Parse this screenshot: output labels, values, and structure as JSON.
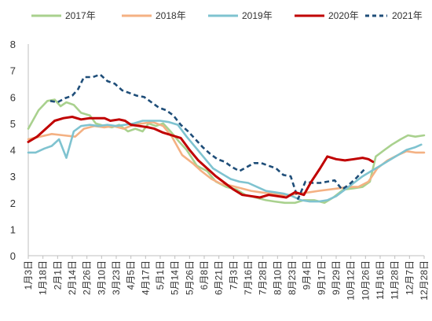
{
  "chart_data": {
    "type": "line",
    "ylim": [
      0,
      8
    ],
    "yticks": [
      "0",
      "1",
      "2",
      "3",
      "4",
      "5",
      "6",
      "7",
      "8"
    ],
    "grid": false,
    "legend_position": "top",
    "xtick_labels": [
      "1月3日",
      "1月18日",
      "2月1日",
      "2月14日",
      "2月26日",
      "3月10日",
      "3月23日",
      "4月5日",
      "4月17日",
      "5月1日",
      "5月14日",
      "5月26日",
      "6月8日",
      "6月21日",
      "7月3日",
      "7月16日",
      "7月28日",
      "8月10日",
      "8月23日",
      "9月4日",
      "9月17日",
      "9月29日",
      "10月12日",
      "10月26日",
      "11月16日",
      "11月28日",
      "12月7日",
      "12月28日"
    ],
    "series": [
      {
        "name": "2017年",
        "color": "#a9d18e",
        "dashed": false,
        "points": [
          [
            0,
            4.8
          ],
          [
            0.7,
            5.5
          ],
          [
            1.3,
            5.85
          ],
          [
            1.8,
            5.9
          ],
          [
            2.2,
            5.65
          ],
          [
            2.6,
            5.8
          ],
          [
            3.1,
            5.7
          ],
          [
            3.6,
            5.4
          ],
          [
            4.2,
            5.3
          ],
          [
            4.6,
            5.0
          ],
          [
            5.2,
            4.9
          ],
          [
            5.7,
            4.85
          ],
          [
            6.2,
            4.95
          ],
          [
            6.8,
            4.7
          ],
          [
            7.3,
            4.8
          ],
          [
            7.8,
            4.7
          ],
          [
            8.2,
            5.0
          ],
          [
            8.7,
            4.9
          ],
          [
            9.2,
            5.0
          ],
          [
            9.7,
            4.7
          ],
          [
            10.3,
            4.3
          ],
          [
            10.8,
            4.0
          ],
          [
            11.5,
            3.4
          ],
          [
            12.2,
            3.2
          ],
          [
            12.8,
            2.8
          ],
          [
            13.5,
            2.6
          ],
          [
            14.2,
            2.5
          ],
          [
            14.8,
            2.3
          ],
          [
            15.5,
            2.2
          ],
          [
            16.2,
            2.1
          ],
          [
            16.8,
            2.05
          ],
          [
            17.5,
            2.0
          ],
          [
            18.2,
            2.0
          ],
          [
            18.8,
            2.1
          ],
          [
            19.5,
            2.1
          ],
          [
            20.2,
            2.0
          ],
          [
            20.8,
            2.2
          ],
          [
            21.5,
            2.5
          ],
          [
            22.2,
            2.55
          ],
          [
            22.8,
            2.6
          ],
          [
            23.3,
            2.8
          ],
          [
            23.7,
            3.75
          ],
          [
            24.3,
            4.0
          ],
          [
            24.8,
            4.2
          ],
          [
            25.4,
            4.4
          ],
          [
            25.9,
            4.55
          ],
          [
            26.4,
            4.5
          ],
          [
            27,
            4.55
          ]
        ]
      },
      {
        "name": "2018年",
        "color": "#f4b183",
        "dashed": false,
        "points": [
          [
            0,
            4.4
          ],
          [
            0.8,
            4.5
          ],
          [
            1.6,
            4.6
          ],
          [
            2.4,
            4.55
          ],
          [
            3.2,
            4.5
          ],
          [
            3.8,
            4.8
          ],
          [
            4.5,
            4.9
          ],
          [
            5.2,
            4.85
          ],
          [
            5.8,
            4.9
          ],
          [
            6.5,
            4.8
          ],
          [
            7.2,
            4.95
          ],
          [
            7.8,
            5.0
          ],
          [
            8.5,
            5.05
          ],
          [
            9.2,
            4.9
          ],
          [
            9.8,
            4.5
          ],
          [
            10.5,
            3.8
          ],
          [
            11.2,
            3.5
          ],
          [
            11.8,
            3.2
          ],
          [
            12.5,
            2.9
          ],
          [
            13.2,
            2.7
          ],
          [
            13.8,
            2.65
          ],
          [
            14.5,
            2.55
          ],
          [
            15.2,
            2.45
          ],
          [
            15.8,
            2.4
          ],
          [
            16.5,
            2.35
          ],
          [
            17.2,
            2.3
          ],
          [
            17.8,
            2.3
          ],
          [
            18.5,
            2.35
          ],
          [
            19.2,
            2.4
          ],
          [
            19.8,
            2.45
          ],
          [
            20.5,
            2.5
          ],
          [
            21.2,
            2.55
          ],
          [
            21.8,
            2.6
          ],
          [
            22.5,
            2.6
          ],
          [
            23.2,
            2.8
          ],
          [
            23.8,
            3.3
          ],
          [
            24.5,
            3.6
          ],
          [
            25.2,
            3.8
          ],
          [
            25.8,
            3.95
          ],
          [
            26.4,
            3.9
          ],
          [
            27,
            3.9
          ]
        ]
      },
      {
        "name": "2019年",
        "color": "#7fc3d0",
        "dashed": false,
        "points": [
          [
            0,
            3.9
          ],
          [
            0.5,
            3.9
          ],
          [
            1.1,
            4.05
          ],
          [
            1.6,
            4.15
          ],
          [
            2.1,
            4.4
          ],
          [
            2.6,
            3.7
          ],
          [
            3.1,
            4.7
          ],
          [
            3.6,
            4.9
          ],
          [
            4.2,
            4.95
          ],
          [
            4.8,
            4.9
          ],
          [
            5.4,
            4.95
          ],
          [
            6.0,
            4.9
          ],
          [
            6.6,
            4.95
          ],
          [
            7.2,
            5.0
          ],
          [
            7.8,
            5.1
          ],
          [
            8.4,
            5.1
          ],
          [
            9.0,
            5.1
          ],
          [
            9.6,
            5.05
          ],
          [
            10.2,
            4.95
          ],
          [
            10.8,
            4.5
          ],
          [
            11.4,
            4.1
          ],
          [
            12.0,
            3.7
          ],
          [
            12.6,
            3.3
          ],
          [
            13.2,
            3.1
          ],
          [
            13.8,
            2.9
          ],
          [
            14.4,
            2.8
          ],
          [
            15.0,
            2.75
          ],
          [
            15.6,
            2.6
          ],
          [
            16.2,
            2.45
          ],
          [
            16.8,
            2.4
          ],
          [
            17.4,
            2.35
          ],
          [
            18.0,
            2.25
          ],
          [
            18.6,
            2.1
          ],
          [
            19.2,
            2.05
          ],
          [
            19.8,
            2.05
          ],
          [
            20.4,
            2.1
          ],
          [
            21.0,
            2.25
          ],
          [
            21.6,
            2.5
          ],
          [
            22.2,
            2.75
          ],
          [
            22.8,
            3.0
          ],
          [
            23.4,
            3.2
          ],
          [
            24.0,
            3.4
          ],
          [
            24.6,
            3.6
          ],
          [
            25.2,
            3.8
          ],
          [
            25.8,
            4.0
          ],
          [
            26.4,
            4.1
          ],
          [
            26.8,
            4.2
          ]
        ]
      },
      {
        "name": "2020年",
        "color": "#c00000",
        "dashed": false,
        "points": [
          [
            0,
            4.3
          ],
          [
            0.6,
            4.5
          ],
          [
            1.2,
            4.8
          ],
          [
            1.8,
            5.1
          ],
          [
            2.4,
            5.2
          ],
          [
            3.0,
            5.25
          ],
          [
            3.6,
            5.15
          ],
          [
            4.2,
            5.2
          ],
          [
            4.8,
            5.2
          ],
          [
            5.2,
            5.2
          ],
          [
            5.6,
            5.1
          ],
          [
            6.2,
            5.15
          ],
          [
            6.6,
            5.1
          ],
          [
            7.0,
            4.95
          ],
          [
            7.6,
            4.9
          ],
          [
            8.2,
            4.85
          ],
          [
            8.6,
            4.8
          ],
          [
            9.2,
            4.65
          ],
          [
            9.8,
            4.55
          ],
          [
            10.4,
            4.45
          ],
          [
            11.0,
            4.0
          ],
          [
            11.6,
            3.6
          ],
          [
            12.2,
            3.3
          ],
          [
            12.8,
            3.0
          ],
          [
            13.4,
            2.75
          ],
          [
            14.0,
            2.5
          ],
          [
            14.6,
            2.3
          ],
          [
            15.2,
            2.25
          ],
          [
            15.8,
            2.2
          ],
          [
            16.4,
            2.3
          ],
          [
            17.0,
            2.25
          ],
          [
            17.6,
            2.2
          ],
          [
            18.2,
            2.4
          ],
          [
            18.8,
            2.3
          ],
          [
            19.3,
            2.8
          ],
          [
            19.9,
            3.3
          ],
          [
            20.4,
            3.75
          ],
          [
            21.0,
            3.65
          ],
          [
            21.6,
            3.6
          ],
          [
            22.2,
            3.65
          ],
          [
            22.8,
            3.7
          ],
          [
            23.2,
            3.65
          ],
          [
            23.5,
            3.55
          ]
        ]
      },
      {
        "name": "2021年",
        "color": "#1f4e79",
        "dashed": true,
        "points": [
          [
            1.5,
            5.85
          ],
          [
            2.0,
            5.8
          ],
          [
            2.5,
            5.95
          ],
          [
            3.0,
            6.05
          ],
          [
            3.4,
            6.3
          ],
          [
            3.8,
            6.75
          ],
          [
            4.4,
            6.75
          ],
          [
            4.9,
            6.85
          ],
          [
            5.4,
            6.6
          ],
          [
            5.9,
            6.5
          ],
          [
            6.4,
            6.25
          ],
          [
            6.9,
            6.15
          ],
          [
            7.4,
            6.05
          ],
          [
            7.9,
            6.0
          ],
          [
            8.4,
            5.8
          ],
          [
            8.9,
            5.6
          ],
          [
            9.4,
            5.5
          ],
          [
            9.9,
            5.3
          ],
          [
            10.4,
            4.95
          ],
          [
            10.9,
            4.7
          ],
          [
            11.4,
            4.4
          ],
          [
            11.9,
            4.1
          ],
          [
            12.4,
            3.85
          ],
          [
            12.9,
            3.65
          ],
          [
            13.4,
            3.55
          ],
          [
            13.9,
            3.35
          ],
          [
            14.4,
            3.2
          ],
          [
            14.9,
            3.35
          ],
          [
            15.4,
            3.5
          ],
          [
            15.9,
            3.5
          ],
          [
            16.4,
            3.4
          ],
          [
            16.9,
            3.3
          ],
          [
            17.4,
            3.05
          ],
          [
            17.9,
            3.0
          ],
          [
            18.4,
            2.15
          ],
          [
            18.9,
            2.8
          ],
          [
            19.4,
            2.75
          ],
          [
            19.9,
            2.75
          ],
          [
            20.4,
            2.8
          ],
          [
            20.9,
            2.85
          ],
          [
            21.4,
            2.5
          ],
          [
            21.9,
            2.7
          ],
          [
            22.4,
            2.95
          ],
          [
            22.9,
            3.25
          ]
        ]
      }
    ]
  }
}
